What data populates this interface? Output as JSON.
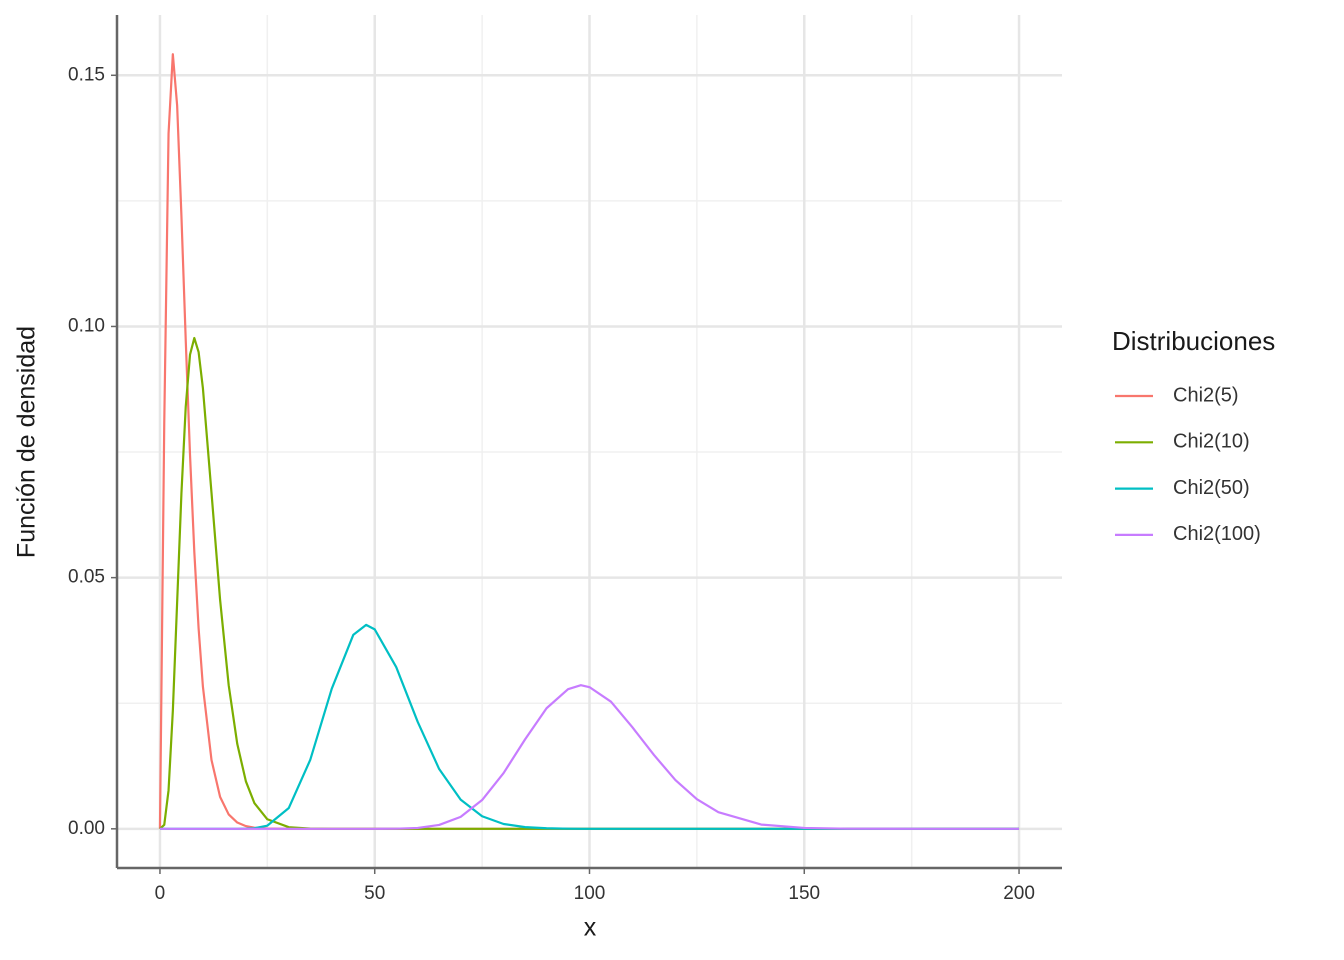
{
  "chart_data": {
    "type": "line",
    "xlabel": "x",
    "ylabel": "Función de densidad",
    "legend_title": "Distribuciones",
    "x": [
      0,
      1,
      2,
      3,
      4,
      5,
      6,
      7,
      8,
      9,
      10,
      12,
      14,
      16,
      18,
      20,
      22,
      25,
      30,
      35,
      40,
      45,
      48,
      50,
      55,
      60,
      65,
      70,
      75,
      80,
      85,
      90,
      95,
      98,
      100,
      105,
      110,
      115,
      120,
      125,
      130,
      140,
      150,
      160,
      180,
      200
    ],
    "series": [
      {
        "name": "Chi2(5)",
        "color": "#F8766D",
        "values": [
          0,
          0.0807,
          0.1384,
          0.1542,
          0.144,
          0.122,
          0.0973,
          0.0744,
          0.0551,
          0.0399,
          0.0283,
          0.0137,
          0.00635,
          0.00286,
          0.00125,
          0.00054,
          0.00023,
          6e-05,
          0,
          0,
          0,
          0,
          0,
          0,
          0,
          0,
          0,
          0,
          0,
          0,
          0,
          0,
          0,
          0,
          0,
          0,
          0,
          0,
          0,
          0,
          0,
          0,
          0,
          0,
          0,
          0
        ]
      },
      {
        "name": "Chi2(10)",
        "color": "#7CAE00",
        "values": [
          0,
          0.00079,
          0.00766,
          0.0235,
          0.0451,
          0.0668,
          0.084,
          0.0944,
          0.0977,
          0.0949,
          0.0877,
          0.0669,
          0.0456,
          0.0286,
          0.0169,
          0.00946,
          0.00509,
          0.0019,
          0.00032,
          5e-05,
          0,
          0,
          0,
          0,
          0,
          0,
          0,
          0,
          0,
          0,
          0,
          0,
          0,
          0,
          0,
          0,
          0,
          0,
          0,
          0,
          0,
          0,
          0,
          0,
          0,
          0
        ]
      },
      {
        "name": "Chi2(50)",
        "color": "#00BFC4",
        "values": [
          0,
          0,
          0,
          0,
          0,
          0,
          0,
          0,
          0,
          0,
          0,
          0,
          0,
          0,
          0,
          4e-05,
          0.00013,
          0.00063,
          0.00415,
          0.01375,
          0.0279,
          0.0386,
          0.0406,
          0.0397,
          0.0322,
          0.0213,
          0.0119,
          0.0058,
          0.0025,
          0.00096,
          0.00034,
          0.00011,
          3e-05,
          0,
          0,
          0,
          0,
          0,
          0,
          0,
          0,
          0,
          0,
          0,
          0,
          0
        ]
      },
      {
        "name": "Chi2(100)",
        "color": "#C77CFF",
        "values": [
          0,
          0,
          0,
          0,
          0,
          0,
          0,
          0,
          0,
          0,
          0,
          0,
          0,
          0,
          0,
          0,
          0,
          0,
          0,
          0,
          0,
          0,
          0,
          0,
          3e-05,
          0.00018,
          0.00077,
          0.00238,
          0.00573,
          0.0111,
          0.0178,
          0.024,
          0.0278,
          0.0286,
          0.0282,
          0.0253,
          0.0202,
          0.0147,
          0.0097,
          0.0059,
          0.0033,
          0.00084,
          0.00017,
          3e-05,
          0,
          0
        ]
      }
    ],
    "xlim": [
      -10,
      210
    ],
    "xticks": [
      0,
      50,
      100,
      150,
      200
    ],
    "xminor": [
      25,
      75,
      125,
      175
    ],
    "ylim": [
      -0.0078,
      0.162
    ],
    "yticks": [
      {
        "value": 0,
        "label": "0.00"
      },
      {
        "value": 0.05,
        "label": "0.05"
      },
      {
        "value": 0.1,
        "label": "0.10"
      },
      {
        "value": 0.15,
        "label": "0.15"
      }
    ],
    "yminor": [
      0.025,
      0.075,
      0.125
    ],
    "grid": true,
    "legend": "right"
  }
}
